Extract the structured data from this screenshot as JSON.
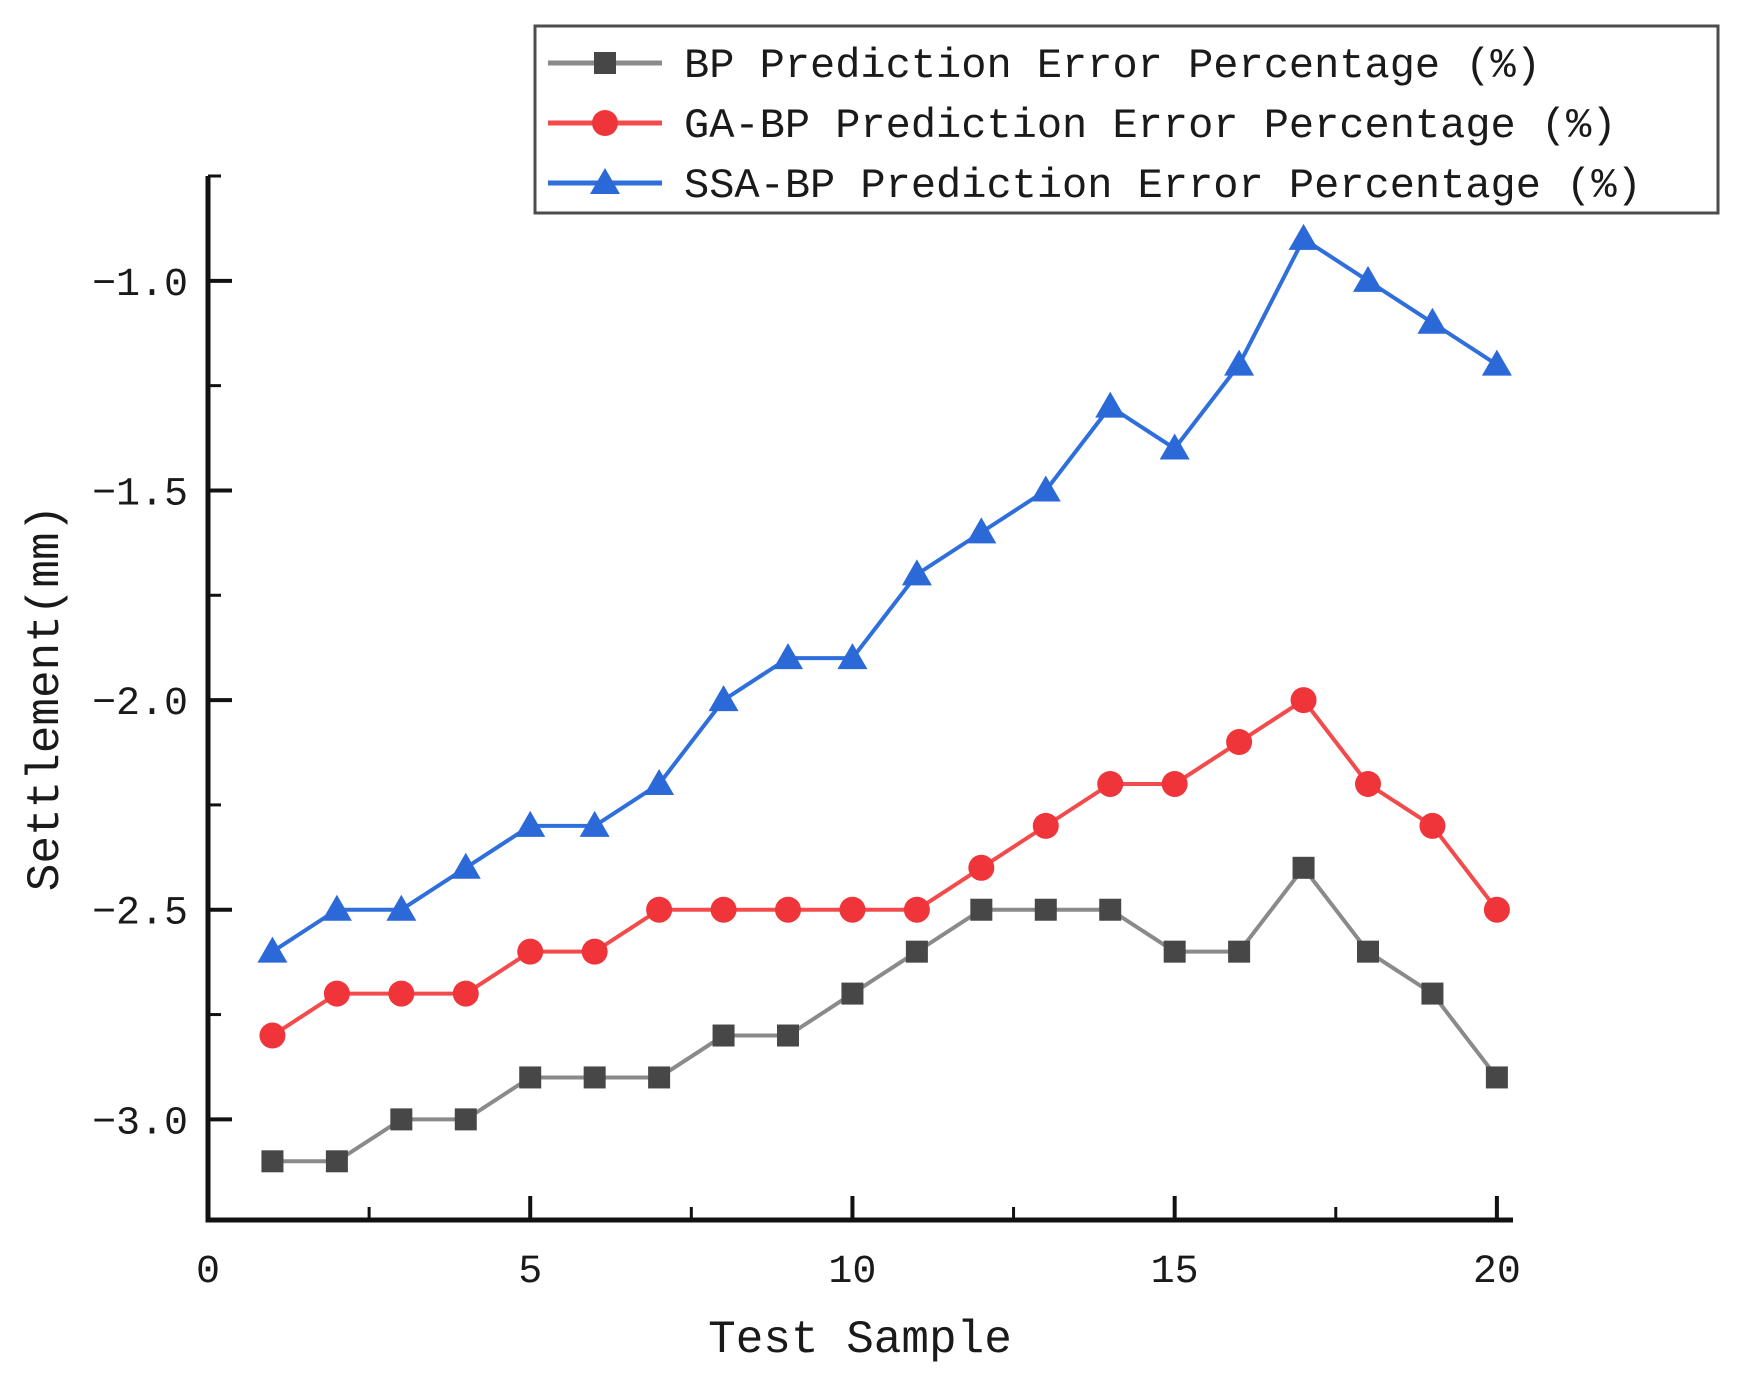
{
  "chart_data": {
    "type": "line",
    "title": "",
    "xlabel": "Test Sample",
    "ylabel": "Settlement(mm)",
    "x": [
      1,
      2,
      3,
      4,
      5,
      6,
      7,
      8,
      9,
      10,
      11,
      12,
      13,
      14,
      15,
      16,
      17,
      18,
      19,
      20
    ],
    "series": [
      {
        "id": "bp",
        "name": "BP Prediction Error Percentage (%)",
        "marker": "square",
        "marker_color": "#474747",
        "line_color": "#8a8a8a",
        "values": [
          -3.1,
          -3.1,
          -3.0,
          -3.0,
          -2.9,
          -2.9,
          -2.9,
          -2.8,
          -2.8,
          -2.7,
          -2.6,
          -2.5,
          -2.5,
          -2.5,
          -2.6,
          -2.6,
          -2.4,
          -2.6,
          -2.7,
          -2.9
        ]
      },
      {
        "id": "ga-bp",
        "name": "GA-BP Prediction Error Percentage (%)",
        "marker": "circle",
        "marker_color": "#ef343a",
        "line_color": "#f34b4b",
        "values": [
          -2.8,
          -2.7,
          -2.7,
          -2.7,
          -2.6,
          -2.6,
          -2.5,
          -2.5,
          -2.5,
          -2.5,
          -2.5,
          -2.4,
          -2.3,
          -2.2,
          -2.2,
          -2.1,
          -2.0,
          -2.2,
          -2.3,
          -2.5
        ]
      },
      {
        "id": "ssa-bp",
        "name": "SSA-BP Prediction Error Percentage (%)",
        "marker": "triangle",
        "marker_color": "#2b68d8",
        "line_color": "#2e6fdb",
        "values": [
          -2.6,
          -2.5,
          -2.5,
          -2.4,
          -2.3,
          -2.3,
          -2.2,
          -2.0,
          -1.9,
          -1.9,
          -1.7,
          -1.6,
          -1.5,
          -1.3,
          -1.4,
          -1.2,
          -0.9,
          -1.0,
          -1.1,
          -1.2
        ]
      }
    ],
    "xlim": [
      0,
      20.25
    ],
    "ylim": [
      -3.24,
      -0.75
    ],
    "x_major_ticks": [
      0,
      5,
      10,
      15,
      20
    ],
    "x_minor_ticks": [
      2.5,
      7.5,
      12.5,
      17.5
    ],
    "x_tick_labels": [
      "0",
      "5",
      "10",
      "15",
      "20"
    ],
    "y_major_ticks": [
      -1.0,
      -1.5,
      -2.0,
      -2.5,
      -3.0
    ],
    "y_minor_ticks": [
      -0.75,
      -1.25,
      -1.75,
      -2.25,
      -2.75
    ],
    "y_tick_labels": [
      "−1.0",
      "−1.5",
      "−2.0",
      "−2.5",
      "−3.0"
    ],
    "grid": false,
    "legend_position": "top",
    "legend_border_color": "#4d4d4d",
    "axis_color": "#111111",
    "background": "#ffffff"
  }
}
